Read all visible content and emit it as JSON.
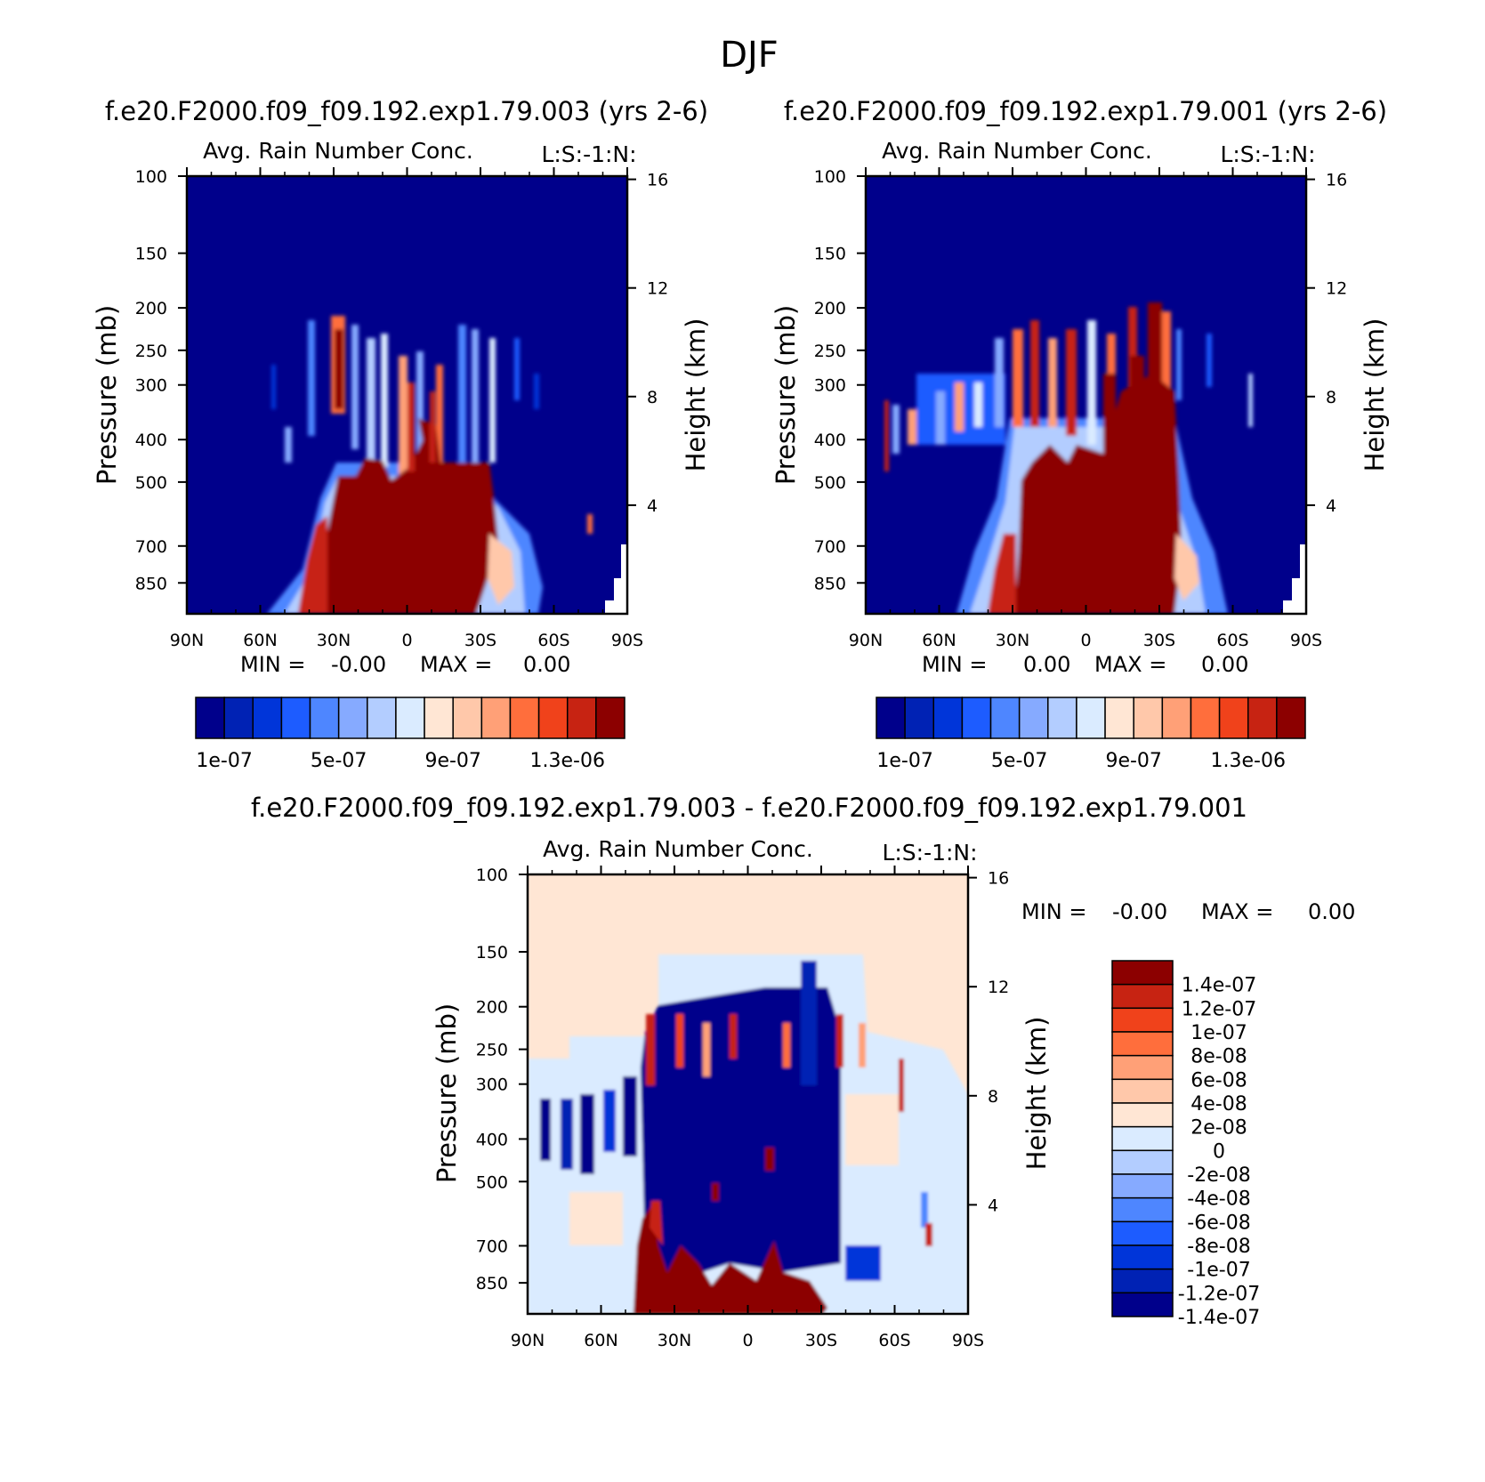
{
  "page_title": "DJF",
  "colors": {
    "seq": [
      "#00008b",
      "#0022b4",
      "#0035d9",
      "#1d5cff",
      "#4e86ff",
      "#86aaff",
      "#b3cdff",
      "#daebff",
      "#ffe6d4",
      "#ffc8aa",
      "#ffa077",
      "#ff6e3c",
      "#f0421b",
      "#c72312",
      "#8c0000"
    ],
    "diff": [
      "#00008b",
      "#0022b4",
      "#0035d9",
      "#1d5cff",
      "#4e86ff",
      "#86aaff",
      "#b3cdff",
      "#daebff",
      "#ffe6d4",
      "#ffc8aa",
      "#ffa077",
      "#ff6e3c",
      "#f0421b",
      "#c72312",
      "#8c0000"
    ],
    "background_low": "#00008b",
    "background_diff": "#ffe6d4"
  },
  "chart_data": [
    {
      "type": "heatmap",
      "case": "f.e20.F2000.f09_f09.192.exp1.79.003 (yrs 2-6)",
      "title": "Avg. Rain Number Conc.",
      "corner_label": "L:S:-1:N:",
      "ylabel": "Pressure (mb)",
      "ylabel_right": "Height (km)",
      "x_ticks": [
        "90N",
        "60N",
        "30N",
        "0",
        "30S",
        "60S",
        "90S"
      ],
      "y_ticks": [
        "100",
        "150",
        "200",
        "250",
        "300",
        "400",
        "500",
        "700",
        "850"
      ],
      "y_right_ticks": [
        "16",
        "12",
        "8",
        "4"
      ],
      "stats": {
        "min_label": "MIN =",
        "min_value": "-0.00",
        "max_label": "MAX =",
        "max_value": "0.00"
      },
      "colorbar_labels": [
        "1e-07",
        "5e-07",
        "9e-07",
        "1.3e-06"
      ],
      "colorbar_levels": 15,
      "xlim": [
        90,
        -90
      ],
      "ylim": [
        100,
        1000
      ],
      "note": ""
    },
    {
      "type": "heatmap",
      "case": "f.e20.F2000.f09_f09.192.exp1.79.001 (yrs 2-6)",
      "title": "Avg. Rain Number Conc.",
      "corner_label": "L:S:-1:N:",
      "ylabel": "Pressure (mb)",
      "ylabel_right": "Height (km)",
      "x_ticks": [
        "90N",
        "60N",
        "30N",
        "0",
        "30S",
        "60S",
        "90S"
      ],
      "y_ticks": [
        "100",
        "150",
        "200",
        "250",
        "300",
        "400",
        "500",
        "700",
        "850"
      ],
      "y_right_ticks": [
        "16",
        "12",
        "8",
        "4"
      ],
      "stats": {
        "min_label": "MIN =",
        "min_value": "0.00",
        "max_label": "MAX =",
        "max_value": "0.00"
      },
      "colorbar_labels": [
        "1e-07",
        "5e-07",
        "9e-07",
        "1.3e-06"
      ],
      "colorbar_levels": 15
    },
    {
      "type": "heatmap",
      "case": "f.e20.F2000.f09_f09.192.exp1.79.003 - f.e20.F2000.f09_f09.192.exp1.79.001",
      "title": "Avg. Rain Number Conc.",
      "corner_label": "L:S:-1:N:",
      "ylabel": "Pressure (mb)",
      "ylabel_right": "Height (km)",
      "x_ticks": [
        "90N",
        "60N",
        "30N",
        "0",
        "30S",
        "60S",
        "90S"
      ],
      "y_ticks": [
        "100",
        "150",
        "200",
        "250",
        "300",
        "400",
        "500",
        "700",
        "850"
      ],
      "y_right_ticks": [
        "16",
        "12",
        "8",
        "4"
      ],
      "stats": {
        "min_label": "MIN =",
        "min_value": "-0.00",
        "max_label": "MAX =",
        "max_value": "0.00"
      },
      "colorbar_labels": [
        "1.4e-07",
        "1.2e-07",
        "1e-07",
        "8e-08",
        "6e-08",
        "4e-08",
        "2e-08",
        "0",
        "-2e-08",
        "-4e-08",
        "-6e-08",
        "-8e-08",
        "-1e-07",
        "-1.2e-07",
        "-1.4e-07"
      ]
    }
  ]
}
